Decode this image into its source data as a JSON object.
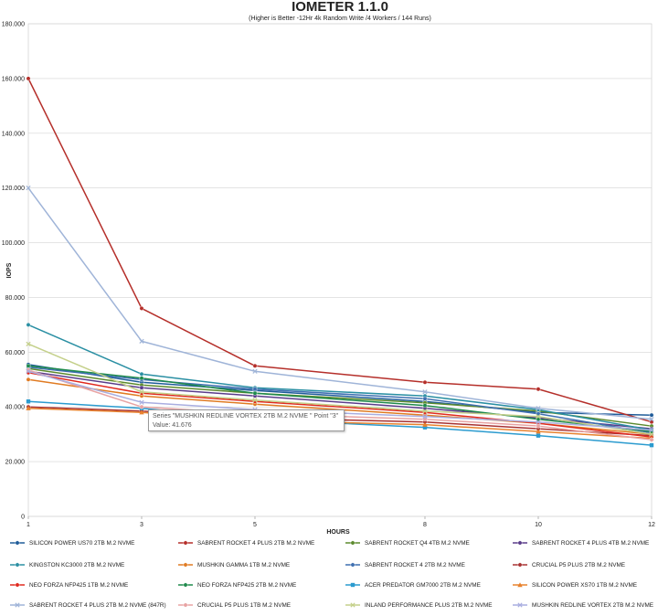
{
  "chart_data": {
    "type": "line",
    "title": "IOMETER 1.1.0",
    "subtitle": "(Higher is Better -12Hr 4k Random Write /4 Workers / 144 Runs)",
    "xlabel": "HOURS",
    "ylabel": "IOPS",
    "x": [
      1,
      3,
      5,
      8,
      10,
      12
    ],
    "ylim": [
      0,
      180000
    ],
    "yticks": [
      "0",
      "20.000",
      "40.000",
      "60.000",
      "80.000",
      "100.000",
      "120.000",
      "140.000",
      "160.000",
      "180.000"
    ],
    "grid": "horizontal",
    "legend_position": "bottom",
    "series": [
      {
        "name": "SILICON POWER US70 2TB M.2 NVME",
        "color": "#1f5c99",
        "marker": "circle",
        "values": [
          55500,
          49000,
          46000,
          42000,
          38000,
          37000
        ]
      },
      {
        "name": "SABRENT ROCKET 4 PLUS 2TB M.2 NVME",
        "color": "#b52f2a",
        "marker": "circle",
        "values": [
          160000,
          76000,
          55000,
          49000,
          46500,
          34500
        ]
      },
      {
        "name": "SABRENT ROCKET Q4 4TB M.2 NVME",
        "color": "#5c8a2e",
        "marker": "circle",
        "values": [
          54000,
          48000,
          45000,
          41500,
          38500,
          33000
        ]
      },
      {
        "name": "SABRENT ROCKET 4 PLUS 4TB M.2 NVME",
        "color": "#5a3d8a",
        "marker": "circle",
        "values": [
          53000,
          47000,
          44000,
          39500,
          36000,
          32000
        ]
      },
      {
        "name": "KINGSTON KC3000 2TB M.2 NVME",
        "color": "#2a8fa3",
        "marker": "circle",
        "values": [
          70000,
          52000,
          47000,
          44000,
          39000,
          31500
        ]
      },
      {
        "name": "MUSHKIN GAMMA 1TB M.2 NVME",
        "color": "#e07b22",
        "marker": "circle",
        "values": [
          50000,
          44000,
          41000,
          37000,
          34000,
          30000
        ]
      },
      {
        "name": "SABRENT ROCKET 4 2TB M.2 NVME",
        "color": "#3e6fb0",
        "marker": "circle",
        "values": [
          54500,
          50000,
          46500,
          43000,
          37500,
          30500
        ]
      },
      {
        "name": "CRUCIAL P5 PLUS 2TB M.2 NVME",
        "color": "#a83232",
        "marker": "circle",
        "values": [
          40000,
          38500,
          36000,
          34500,
          32000,
          29500
        ]
      },
      {
        "name": "NEO FORZA NFP425 1TB M.2 NVME",
        "color": "#e02a1f",
        "marker": "circle",
        "values": [
          52500,
          45000,
          42000,
          38000,
          34000,
          29000
        ]
      },
      {
        "name": "NEO FORZA NFP425 2TB M.2 NVME",
        "color": "#1f8a4c",
        "marker": "circle",
        "values": [
          55000,
          50500,
          45000,
          40500,
          35500,
          31000
        ]
      },
      {
        "name": "ACER PREDATOR GM7000 2TB M.2 NVME",
        "color": "#2b9bcf",
        "marker": "square",
        "values": [
          42000,
          39500,
          35500,
          32500,
          29500,
          26000
        ]
      },
      {
        "name": "SILICON POWER XS70 1TB M.2 NVME",
        "color": "#e8822e",
        "marker": "triangle",
        "values": [
          39500,
          38000,
          35000,
          33500,
          31000,
          28500
        ]
      },
      {
        "name": "SABRENT ROCKET 4 PLUS 2TB M.2 NVME (847R)",
        "color": "#9fb4d8",
        "marker": "cross",
        "values": [
          120000,
          64000,
          53000,
          45500,
          39500,
          35500
        ]
      },
      {
        "name": "CRUCIAL P5 PLUS 1TB M.2 NVME",
        "color": "#e8a3a3",
        "marker": "circle",
        "values": [
          53500,
          40000,
          37500,
          35500,
          33000,
          28000
        ]
      },
      {
        "name": "INLAND PERFORMANCE PLUS 2TB M.2 NVME",
        "color": "#c4d08a",
        "marker": "cross",
        "values": [
          63000,
          45500,
          42500,
          38500,
          36500,
          30000
        ]
      },
      {
        "name": "MUSHKIN REDLINE VORTEX 2TB M.2 NVME",
        "color": "#a9aee0",
        "marker": "cross",
        "values": [
          53000,
          41676,
          39000,
          36500,
          34500,
          31500
        ]
      }
    ]
  },
  "tooltip": {
    "line1": "Series \"MUSHKIN REDLINE VORTEX 2TB M.2 NVME \" Point \"3\"",
    "line2": "Value: 41.676"
  }
}
